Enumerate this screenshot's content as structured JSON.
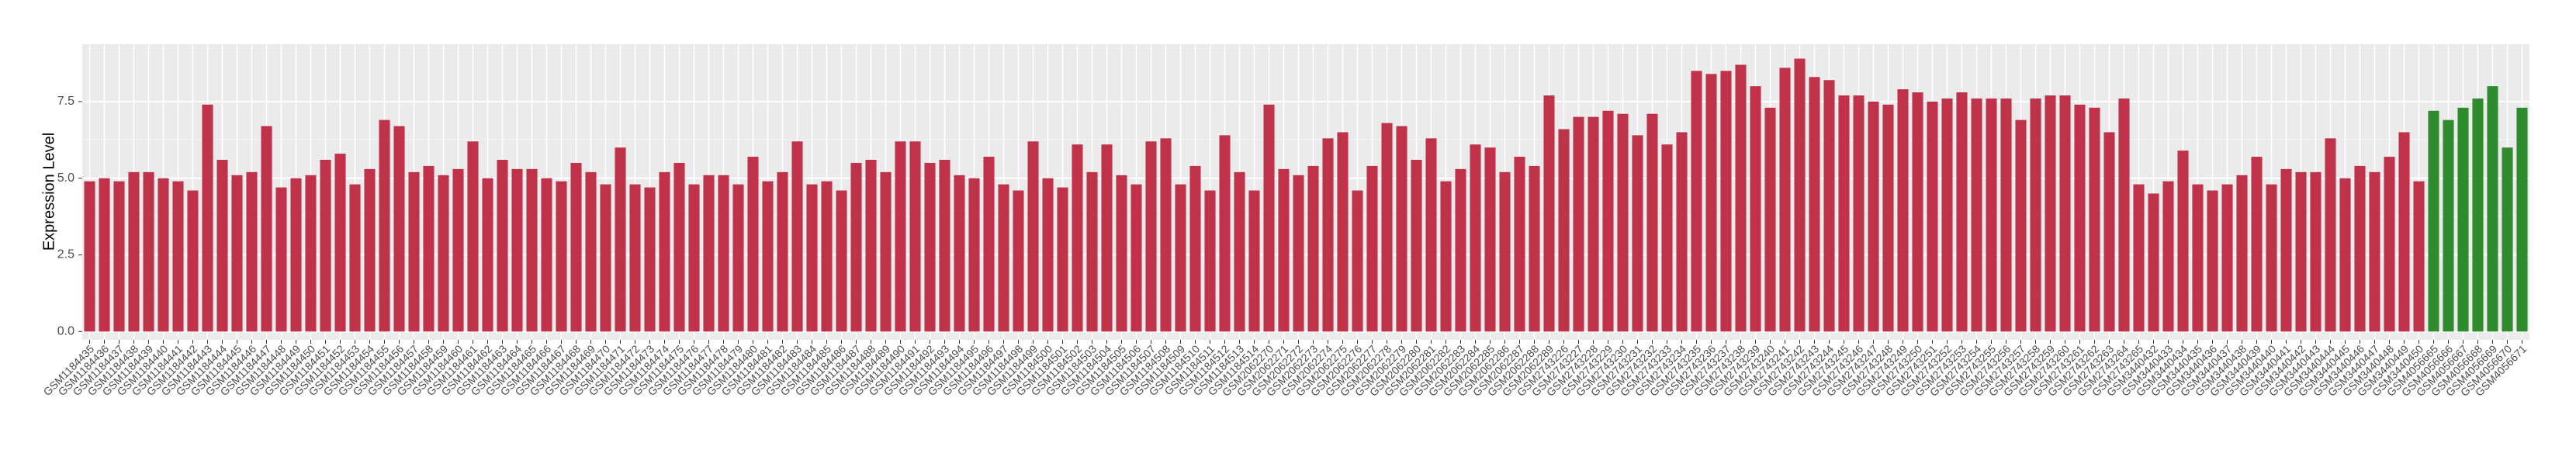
{
  "chart_data": {
    "type": "bar",
    "y_label": "Expression Level",
    "ylim": [
      -0.27,
      9.37
    ],
    "yticks": [
      {
        "value": 0,
        "label": "0.0"
      },
      2.5,
      {
        "value": 5,
        "label": "5.0"
      },
      7.5
    ],
    "grid": true,
    "categories": [
      "GSM1184435",
      "GSM1184436",
      "GSM1184437",
      "GSM1184438",
      "GSM1184439",
      "GSM1184440",
      "GSM1184441",
      "GSM1184442",
      "GSM1184443",
      "GSM1184444",
      "GSM1184445",
      "GSM1184446",
      "GSM1184447",
      "GSM1184448",
      "GSM1184449",
      "GSM1184450",
      "GSM1184451",
      "GSM1184452",
      "GSM1184453",
      "GSM1184454",
      "GSM1184455",
      "GSM1184456",
      "GSM1184457",
      "GSM1184458",
      "GSM1184459",
      "GSM1184460",
      "GSM1184461",
      "GSM1184462",
      "GSM1184463",
      "GSM1184464",
      "GSM1184465",
      "GSM1184466",
      "GSM1184467",
      "GSM1184468",
      "GSM1184469",
      "GSM1184470",
      "GSM1184471",
      "GSM1184472",
      "GSM1184473",
      "GSM1184474",
      "GSM1184475",
      "GSM1184476",
      "GSM1184477",
      "GSM1184478",
      "GSM1184479",
      "GSM1184480",
      "GSM1184481",
      "GSM1184482",
      "GSM1184483",
      "GSM1184484",
      "GSM1184485",
      "GSM1184486",
      "GSM1184487",
      "GSM1184488",
      "GSM1184489",
      "GSM1184490",
      "GSM1184491",
      "GSM1184492",
      "GSM1184493",
      "GSM1184494",
      "GSM1184495",
      "GSM1184496",
      "GSM1184497",
      "GSM1184498",
      "GSM1184499",
      "GSM1184500",
      "GSM1184501",
      "GSM1184502",
      "GSM1184503",
      "GSM1184504",
      "GSM1184505",
      "GSM1184506",
      "GSM1184507",
      "GSM1184508",
      "GSM1184509",
      "GSM1184510",
      "GSM1184511",
      "GSM1184512",
      "GSM1184513",
      "GSM1184514",
      "GSM2062270",
      "GSM2062271",
      "GSM2062272",
      "GSM2062273",
      "GSM2062274",
      "GSM2062275",
      "GSM2062276",
      "GSM2062277",
      "GSM2062278",
      "GSM2062279",
      "GSM2062280",
      "GSM2062281",
      "GSM2062282",
      "GSM2062283",
      "GSM2062284",
      "GSM2062285",
      "GSM2062286",
      "GSM2062287",
      "GSM2062288",
      "GSM2062289",
      "GSM2743226",
      "GSM2743227",
      "GSM2743228",
      "GSM2743229",
      "GSM2743230",
      "GSM2743231",
      "GSM2743232",
      "GSM2743233",
      "GSM2743234",
      "GSM2743235",
      "GSM2743236",
      "GSM2743237",
      "GSM2743238",
      "GSM2743239",
      "GSM2743240",
      "GSM2743241",
      "GSM2743242",
      "GSM2743243",
      "GSM2743244",
      "GSM2743245",
      "GSM2743246",
      "GSM2743247",
      "GSM2743248",
      "GSM2743249",
      "GSM2743250",
      "GSM2743251",
      "GSM2743252",
      "GSM2743253",
      "GSM2743254",
      "GSM2743255",
      "GSM2743256",
      "GSM2743257",
      "GSM2743258",
      "GSM2743259",
      "GSM2743260",
      "GSM2743261",
      "GSM2743262",
      "GSM2743263",
      "GSM2743264",
      "GSM2743265",
      "GSM3440432",
      "GSM3440433",
      "GSM3440434",
      "GSM3440435",
      "GSM3440436",
      "GSM3440437",
      "GSM3440438",
      "GSM3440439",
      "GSM3440440",
      "GSM3440441",
      "GSM3440442",
      "GSM3440443",
      "GSM3440444",
      "GSM3440445",
      "GSM3440446",
      "GSM3440447",
      "GSM3440448",
      "GSM3440449",
      "GSM3440450",
      "GSM4056665",
      "GSM4056666",
      "GSM4056667",
      "GSM4056668",
      "GSM4056669",
      "GSM4056670",
      "GSM4056671"
    ],
    "values": [
      4.9,
      5.0,
      4.9,
      5.2,
      5.2,
      5.0,
      4.9,
      4.6,
      7.4,
      5.6,
      5.1,
      5.2,
      6.7,
      4.7,
      5.0,
      5.1,
      5.6,
      5.8,
      4.8,
      5.3,
      6.9,
      6.7,
      5.2,
      5.4,
      5.1,
      5.3,
      6.2,
      5.0,
      5.6,
      5.3,
      5.3,
      5.0,
      4.9,
      5.5,
      5.2,
      4.8,
      6.0,
      4.8,
      4.7,
      5.2,
      5.5,
      4.8,
      5.1,
      5.1,
      4.8,
      5.7,
      4.9,
      5.2,
      6.2,
      4.8,
      4.9,
      4.6,
      5.5,
      5.6,
      5.2,
      6.2,
      6.2,
      5.5,
      5.6,
      5.1,
      5.0,
      5.7,
      4.8,
      4.6,
      6.2,
      5.0,
      4.7,
      6.1,
      5.2,
      6.1,
      5.1,
      4.8,
      6.2,
      6.3,
      4.8,
      5.4,
      4.6,
      6.4,
      5.2,
      4.6,
      7.4,
      5.3,
      5.1,
      5.4,
      6.3,
      6.5,
      4.6,
      5.4,
      6.8,
      6.7,
      5.6,
      6.3,
      4.9,
      5.3,
      6.1,
      6.0,
      5.2,
      5.7,
      5.4,
      7.7,
      6.6,
      7.0,
      7.0,
      7.2,
      7.1,
      6.4,
      7.1,
      6.1,
      6.5,
      8.5,
      8.4,
      8.5,
      8.7,
      8.0,
      7.3,
      8.6,
      8.9,
      8.3,
      8.2,
      7.7,
      7.7,
      7.5,
      7.4,
      7.9,
      7.8,
      7.5,
      7.6,
      7.8,
      7.6,
      7.6,
      7.6,
      6.9,
      7.6,
      7.7,
      7.7,
      7.4,
      7.3,
      6.5,
      7.6,
      4.8,
      4.5,
      4.9,
      5.9,
      4.8,
      4.6,
      4.8,
      5.1,
      5.7,
      4.8,
      5.3,
      5.2,
      5.2,
      6.3,
      5.0,
      5.4,
      5.2,
      5.7,
      6.5,
      4.9,
      7.2,
      6.9,
      7.3,
      7.6,
      8.0,
      6.0,
      7.3
    ],
    "colors": [
      "#c0314a",
      "#c0314a",
      "#c0314a",
      "#c0314a",
      "#c0314a",
      "#c0314a",
      "#c0314a",
      "#c0314a",
      "#c0314a",
      "#c0314a",
      "#c0314a",
      "#c0314a",
      "#c0314a",
      "#c0314a",
      "#c0314a",
      "#c0314a",
      "#c0314a",
      "#c0314a",
      "#c0314a",
      "#c0314a",
      "#c0314a",
      "#c0314a",
      "#c0314a",
      "#c0314a",
      "#c0314a",
      "#c0314a",
      "#c0314a",
      "#c0314a",
      "#c0314a",
      "#c0314a",
      "#c0314a",
      "#c0314a",
      "#c0314a",
      "#c0314a",
      "#c0314a",
      "#c0314a",
      "#c0314a",
      "#c0314a",
      "#c0314a",
      "#c0314a",
      "#c0314a",
      "#c0314a",
      "#c0314a",
      "#c0314a",
      "#c0314a",
      "#c0314a",
      "#c0314a",
      "#c0314a",
      "#c0314a",
      "#c0314a",
      "#c0314a",
      "#c0314a",
      "#c0314a",
      "#c0314a",
      "#c0314a",
      "#c0314a",
      "#c0314a",
      "#c0314a",
      "#c0314a",
      "#c0314a",
      "#c0314a",
      "#c0314a",
      "#c0314a",
      "#c0314a",
      "#c0314a",
      "#c0314a",
      "#c0314a",
      "#c0314a",
      "#c0314a",
      "#c0314a",
      "#c0314a",
      "#c0314a",
      "#c0314a",
      "#c0314a",
      "#c0314a",
      "#c0314a",
      "#c0314a",
      "#c0314a",
      "#c0314a",
      "#c0314a",
      "#c0314a",
      "#c0314a",
      "#c0314a",
      "#c0314a",
      "#c0314a",
      "#c0314a",
      "#c0314a",
      "#c0314a",
      "#c0314a",
      "#c0314a",
      "#c0314a",
      "#c0314a",
      "#c0314a",
      "#c0314a",
      "#c0314a",
      "#c0314a",
      "#c0314a",
      "#c0314a",
      "#c0314a",
      "#c0314a",
      "#c0314a",
      "#c0314a",
      "#c0314a",
      "#c0314a",
      "#c0314a",
      "#c0314a",
      "#c0314a",
      "#c0314a",
      "#c0314a",
      "#c0314a",
      "#c0314a",
      "#c0314a",
      "#c0314a",
      "#c0314a",
      "#c0314a",
      "#c0314a",
      "#c0314a",
      "#c0314a",
      "#c0314a",
      "#c0314a",
      "#c0314a",
      "#c0314a",
      "#c0314a",
      "#c0314a",
      "#c0314a",
      "#c0314a",
      "#c0314a",
      "#c0314a",
      "#c0314a",
      "#c0314a",
      "#c0314a",
      "#c0314a",
      "#c0314a",
      "#c0314a",
      "#c0314a",
      "#c0314a",
      "#c0314a",
      "#c0314a",
      "#c0314a",
      "#c0314a",
      "#c0314a",
      "#c0314a",
      "#c0314a",
      "#c0314a",
      "#c0314a",
      "#c0314a",
      "#c0314a",
      "#c0314a",
      "#c0314a",
      "#c0314a",
      "#c0314a",
      "#c0314a",
      "#c0314a",
      "#c0314a",
      "#c0314a",
      "#c0314a",
      "#c0314a",
      "#c0314a",
      "#c0314a",
      "#2e8b2e",
      "#2e8b2e",
      "#2e8b2e",
      "#2e8b2e",
      "#2e8b2e",
      "#2e8b2e",
      "#2e8b2e"
    ]
  }
}
